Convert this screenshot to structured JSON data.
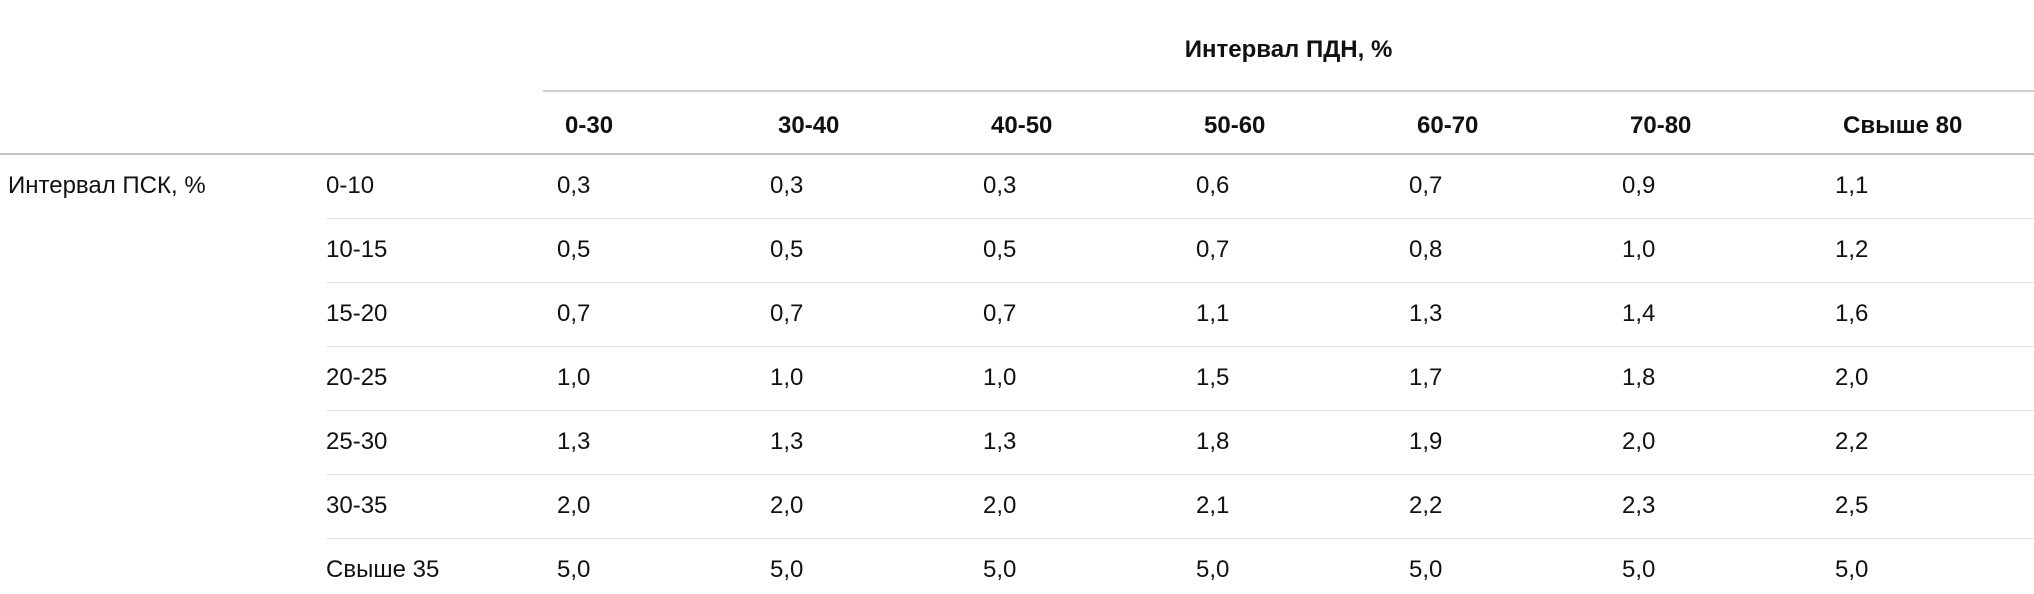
{
  "table": {
    "header_group_label": "Интервал ПДН, %",
    "columns": [
      "0-30",
      "30-40",
      "40-50",
      "50-60",
      "60-70",
      "70-80",
      "Свыше 80"
    ],
    "row_group_label": "Интервал ПСК, %",
    "rows": [
      {
        "label": "0-10",
        "values": [
          "0,3",
          "0,3",
          "0,3",
          "0,6",
          "0,7",
          "0,9",
          "1,1"
        ]
      },
      {
        "label": "10-15",
        "values": [
          "0,5",
          "0,5",
          "0,5",
          "0,7",
          "0,8",
          "1,0",
          "1,2"
        ]
      },
      {
        "label": "15-20",
        "values": [
          "0,7",
          "0,7",
          "0,7",
          "1,1",
          "1,3",
          "1,4",
          "1,6"
        ]
      },
      {
        "label": "20-25",
        "values": [
          "1,0",
          "1,0",
          "1,0",
          "1,5",
          "1,7",
          "1,8",
          "2,0"
        ]
      },
      {
        "label": "25-30",
        "values": [
          "1,3",
          "1,3",
          "1,3",
          "1,8",
          "1,9",
          "2,0",
          "2,2"
        ]
      },
      {
        "label": "30-35",
        "values": [
          "2,0",
          "2,0",
          "2,0",
          "2,1",
          "2,2",
          "2,3",
          "2,5"
        ]
      },
      {
        "label": "Свыше 35",
        "values": [
          "5,0",
          "5,0",
          "5,0",
          "5,0",
          "5,0",
          "5,0",
          "5,0"
        ]
      }
    ]
  }
}
